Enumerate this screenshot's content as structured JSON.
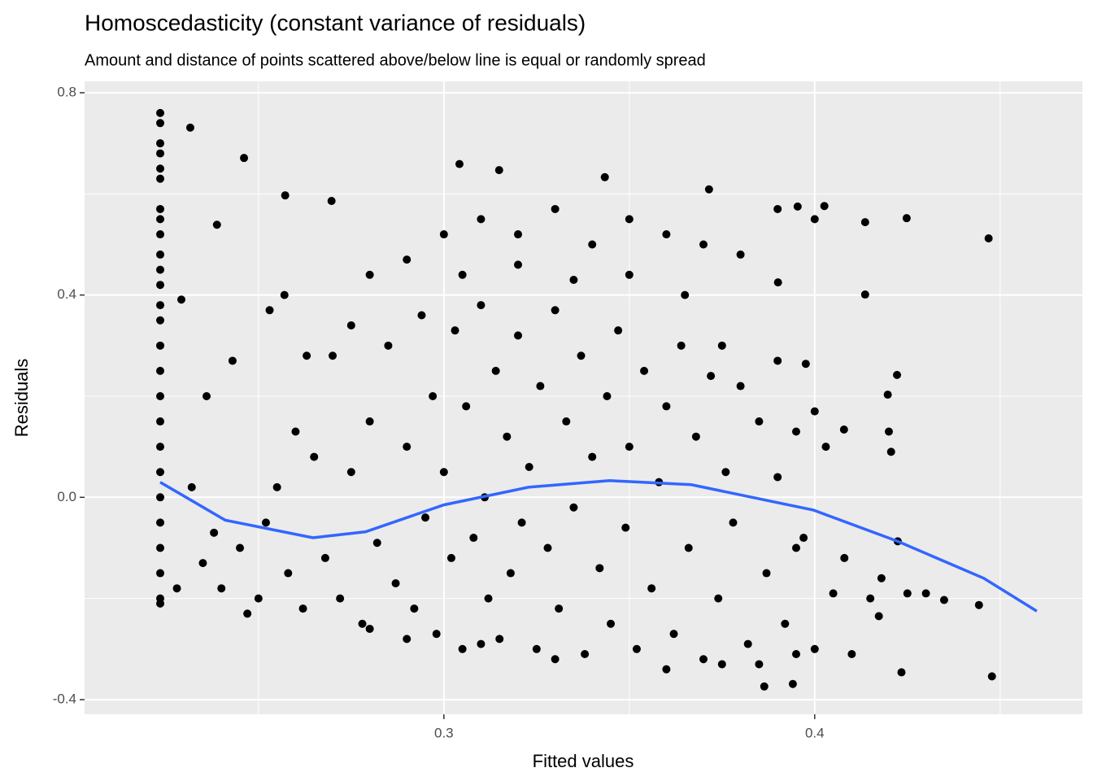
{
  "chart_data": {
    "type": "scatter",
    "title": "Homoscedasticity (constant variance of residuals)",
    "subtitle": "Amount and distance of points scattered above/below line is equal or randomly spread",
    "xlabel": "Fitted values",
    "ylabel": "Residuals",
    "color": "#000000",
    "xlim": [
      0.2031,
      0.4722
    ],
    "ylim": [
      -0.429,
      0.8225
    ],
    "xticks": [
      0.3,
      0.4
    ],
    "yticks": [
      -0.4,
      {
        "value": 0,
        "label": "0.0"
      },
      0.4,
      0.8
    ],
    "xminor": [
      0.25,
      0.35,
      0.45
    ],
    "yminor": [
      -0.2,
      0.2,
      0.6
    ],
    "grid": true,
    "x": [
      0.2235,
      0.2235,
      0.2235,
      0.2235,
      0.2235,
      0.2235,
      0.2235,
      0.2235,
      0.2235,
      0.2235,
      0.2235,
      0.2235,
      0.2235,
      0.2235,
      0.2235,
      0.2235,
      0.2235,
      0.2235,
      0.2235,
      0.2235,
      0.2235,
      0.2235,
      0.2235,
      0.2235,
      0.2235,
      0.2235,
      0.2316,
      0.2461,
      0.3042,
      0.3149,
      0.2572,
      0.2697,
      0.4469,
      0.4248,
      0.4136,
      0.3954,
      0.3715,
      0.3434,
      0.4136,
      0.3901,
      0.2388,
      0.2292,
      0.4478,
      0.4234,
      0.3941,
      0.3864,
      0.4173,
      0.4443,
      0.4349,
      0.4224,
      0.4206,
      0.4222,
      0.4197,
      0.4079,
      0.3976,
      0.4026,
      0.235,
      0.24,
      0.245,
      0.25,
      0.252,
      0.255,
      0.258,
      0.26,
      0.262,
      0.265,
      0.268,
      0.27,
      0.272,
      0.275,
      0.278,
      0.28,
      0.282,
      0.285,
      0.287,
      0.29,
      0.292,
      0.294,
      0.295,
      0.297,
      0.298,
      0.3,
      0.302,
      0.303,
      0.305,
      0.306,
      0.308,
      0.31,
      0.311,
      0.312,
      0.314,
      0.315,
      0.317,
      0.318,
      0.32,
      0.321,
      0.323,
      0.325,
      0.326,
      0.328,
      0.33,
      0.331,
      0.333,
      0.335,
      0.337,
      0.338,
      0.34,
      0.342,
      0.344,
      0.345,
      0.347,
      0.349,
      0.35,
      0.352,
      0.354,
      0.356,
      0.358,
      0.36,
      0.362,
      0.364,
      0.366,
      0.368,
      0.37,
      0.372,
      0.374,
      0.376,
      0.378,
      0.38,
      0.382,
      0.385,
      0.387,
      0.39,
      0.392,
      0.395,
      0.397,
      0.4,
      0.403,
      0.405,
      0.408,
      0.41,
      0.415,
      0.418,
      0.42,
      0.425,
      0.43,
      0.228,
      0.232,
      0.236,
      0.238,
      0.243,
      0.247,
      0.253,
      0.257,
      0.263,
      0.275,
      0.28,
      0.29,
      0.3,
      0.31,
      0.32,
      0.33,
      0.34,
      0.35,
      0.36,
      0.37,
      0.38,
      0.39,
      0.4,
      0.305,
      0.32,
      0.335,
      0.35,
      0.365,
      0.375,
      0.39,
      0.4,
      0.395,
      0.28,
      0.29,
      0.31,
      0.33,
      0.36,
      0.375,
      0.385,
      0.395
    ],
    "y": [
      0.76,
      0.74,
      0.7,
      0.68,
      0.65,
      0.63,
      0.57,
      0.55,
      0.52,
      0.48,
      0.45,
      0.42,
      0.38,
      0.35,
      0.3,
      0.25,
      0.2,
      0.15,
      0.1,
      0.05,
      0.0,
      -0.05,
      -0.1,
      -0.15,
      -0.2,
      -0.21,
      0.731,
      0.671,
      0.659,
      0.647,
      0.597,
      0.586,
      0.512,
      0.552,
      0.544,
      0.575,
      0.609,
      0.633,
      0.401,
      0.425,
      0.539,
      0.391,
      -0.354,
      -0.346,
      -0.369,
      -0.374,
      -0.235,
      -0.213,
      -0.203,
      -0.087,
      0.09,
      0.242,
      0.203,
      0.134,
      0.264,
      0.576,
      -0.13,
      -0.18,
      -0.1,
      -0.2,
      -0.05,
      0.02,
      -0.15,
      0.13,
      -0.22,
      0.08,
      -0.12,
      0.28,
      -0.2,
      0.05,
      -0.25,
      0.15,
      -0.09,
      0.3,
      -0.17,
      0.1,
      -0.22,
      0.36,
      -0.04,
      0.2,
      -0.27,
      0.05,
      -0.12,
      0.33,
      -0.3,
      0.18,
      -0.08,
      0.38,
      0.0,
      -0.2,
      0.25,
      -0.28,
      0.12,
      -0.15,
      0.32,
      -0.05,
      0.06,
      -0.3,
      0.22,
      -0.1,
      0.37,
      -0.22,
      0.15,
      -0.02,
      0.28,
      -0.31,
      0.08,
      -0.14,
      0.2,
      -0.25,
      0.33,
      -0.06,
      0.1,
      -0.3,
      0.25,
      -0.18,
      0.03,
      0.18,
      -0.27,
      0.3,
      -0.1,
      0.12,
      -0.32,
      0.24,
      -0.2,
      0.05,
      -0.05,
      0.22,
      -0.29,
      0.15,
      -0.15,
      0.04,
      -0.25,
      0.13,
      -0.08,
      -0.3,
      0.1,
      -0.19,
      -0.12,
      -0.31,
      -0.2,
      -0.16,
      0.13,
      -0.19,
      -0.19,
      -0.18,
      0.02,
      0.2,
      -0.07,
      0.27,
      -0.23,
      0.37,
      0.4,
      0.28,
      0.34,
      0.44,
      0.47,
      0.52,
      0.55,
      0.52,
      0.57,
      0.5,
      0.55,
      0.52,
      0.5,
      0.48,
      0.57,
      0.55,
      0.44,
      0.46,
      0.43,
      0.44,
      0.4,
      0.3,
      0.27,
      0.17,
      -0.1,
      -0.26,
      -0.28,
      -0.29,
      -0.32,
      -0.34,
      -0.33,
      -0.33,
      -0.31
    ],
    "smooth": {
      "color": "#3366ff",
      "x": [
        0.2235,
        0.241,
        0.2647,
        0.2789,
        0.3,
        0.3228,
        0.3447,
        0.3667,
        0.3996,
        0.4224,
        0.4456,
        0.4599
      ],
      "y": [
        0.03,
        -0.045,
        -0.08,
        -0.068,
        -0.015,
        0.02,
        0.033,
        0.025,
        -0.025,
        -0.087,
        -0.16,
        -0.225
      ]
    }
  }
}
